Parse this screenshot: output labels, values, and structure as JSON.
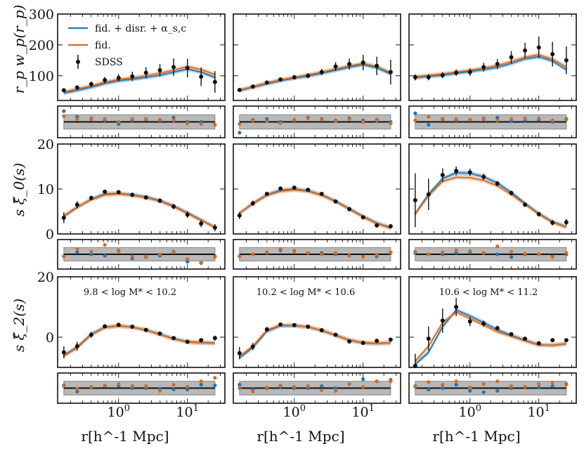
{
  "chart_data": {
    "type": "line",
    "title": "",
    "x_scale": "log",
    "xlim": [
      0.13,
      35
    ],
    "xlabel": "r[h^-1 Mpc]",
    "x_ticks": [
      {
        "value": 1,
        "label": "10^0"
      },
      {
        "value": 10,
        "label": "10^1"
      }
    ],
    "columns": [
      "9.8 < log M* < 10.2",
      "10.2 < log M* < 10.6",
      "10.6 < log M* < 11.2"
    ],
    "legend": {
      "placement": "top-left",
      "entries": [
        {
          "key": "blue",
          "label": "fid. + disr. + α_s,c"
        },
        {
          "key": "orange",
          "label": "fid."
        },
        {
          "key": "data",
          "label": "SDSS"
        }
      ]
    },
    "series_colors": {
      "blue": "#1f77b4",
      "orange": "#d96a1e",
      "data": "#111111",
      "band_blue": "#9cc6e6",
      "band_orange": "#f2c09a",
      "resid_band": "#b8b8b8"
    },
    "rows": [
      {
        "name": "wp",
        "ylabel": "r_p w_p(r_p)",
        "ylim": [
          20,
          300
        ],
        "y_ticks": [
          100,
          200,
          300
        ],
        "x": [
          0.16,
          0.25,
          0.4,
          0.63,
          1.0,
          1.58,
          2.5,
          3.98,
          6.3,
          10.0,
          15.8,
          25.1
        ]
      },
      {
        "name": "xi0",
        "ylabel": "s ξ̂_0(s)",
        "ylim": [
          0,
          20
        ],
        "y_ticks": [
          0,
          10,
          20
        ],
        "x": [
          0.16,
          0.25,
          0.4,
          0.63,
          1.0,
          1.58,
          2.5,
          3.98,
          6.3,
          10.0,
          15.8,
          25.1
        ]
      },
      {
        "name": "xi2",
        "ylabel": "s ξ̂_2(s)",
        "ylim": [
          -10,
          20
        ],
        "y_ticks": [
          0,
          20
        ],
        "x": [
          0.16,
          0.25,
          0.4,
          0.63,
          1.0,
          1.58,
          2.5,
          3.98,
          6.3,
          10.0,
          15.8,
          25.1
        ]
      }
    ],
    "panels": [
      {
        "row": 0,
        "col": 0,
        "data": [
          53,
          62,
          73,
          86,
          93,
          98,
          110,
          118,
          128,
          125,
          97,
          80
        ],
        "err": [
          6,
          7,
          8,
          10,
          12,
          15,
          18,
          20,
          28,
          30,
          30,
          35
        ],
        "fid_blue": [
          44,
          53,
          63,
          75,
          84,
          89,
          95,
          102,
          112,
          122,
          112,
          95
        ],
        "fid_orange": [
          47,
          57,
          67,
          79,
          88,
          93,
          100,
          108,
          118,
          130,
          120,
          104
        ]
      },
      {
        "row": 0,
        "col": 1,
        "data": [
          54,
          65,
          78,
          88,
          95,
          100,
          112,
          130,
          138,
          143,
          132,
          112
        ],
        "err": [
          4,
          5,
          5,
          6,
          7,
          8,
          10,
          14,
          18,
          25,
          30,
          40
        ],
        "fid_blue": [
          52,
          63,
          74,
          84,
          92,
          99,
          108,
          118,
          128,
          136,
          126,
          106
        ],
        "fid_orange": [
          54,
          65,
          77,
          87,
          95,
          103,
          112,
          122,
          132,
          140,
          130,
          110
        ]
      },
      {
        "row": 0,
        "col": 2,
        "data": [
          95,
          95,
          102,
          110,
          112,
          128,
          138,
          160,
          182,
          192,
          170,
          150
        ],
        "err": [
          10,
          10,
          10,
          10,
          12,
          14,
          16,
          20,
          25,
          35,
          40,
          45
        ],
        "fid_blue": [
          94,
          98,
          102,
          108,
          114,
          120,
          128,
          140,
          155,
          162,
          148,
          120
        ],
        "fid_orange": [
          97,
          101,
          106,
          112,
          118,
          125,
          133,
          146,
          160,
          168,
          154,
          128
        ]
      },
      {
        "row": 1,
        "col": 0,
        "data": [
          3.6,
          6.5,
          8.0,
          9.4,
          9.3,
          8.7,
          8.1,
          7.4,
          6.1,
          4.3,
          2.3,
          1.4
        ],
        "err": [
          1.2,
          0.8,
          0.5,
          0.4,
          0.4,
          0.4,
          0.4,
          0.5,
          0.6,
          0.7,
          0.8,
          0.8
        ],
        "fid_blue": [
          3.9,
          5.9,
          7.7,
          8.9,
          9.0,
          8.7,
          8.2,
          7.4,
          6.2,
          4.7,
          3.1,
          1.5
        ],
        "fid_orange": [
          4.0,
          6.0,
          7.6,
          8.7,
          8.9,
          8.6,
          8.1,
          7.3,
          6.1,
          4.6,
          3.0,
          1.5
        ]
      },
      {
        "row": 1,
        "col": 1,
        "data": [
          4.1,
          6.8,
          8.9,
          10.1,
          10.3,
          9.8,
          8.9,
          7.2,
          5.5,
          3.7,
          1.9,
          1.7
        ],
        "err": [
          0.8,
          0.6,
          0.4,
          0.3,
          0.3,
          0.3,
          0.3,
          0.3,
          0.3,
          0.3,
          0.4,
          0.5
        ],
        "fid_blue": [
          4.6,
          6.8,
          8.7,
          9.7,
          10.0,
          9.6,
          8.7,
          7.3,
          5.6,
          3.9,
          2.4,
          1.4
        ],
        "fid_orange": [
          4.6,
          6.7,
          8.6,
          9.5,
          9.8,
          9.5,
          8.6,
          7.2,
          5.5,
          3.8,
          2.3,
          1.3
        ]
      },
      {
        "row": 1,
        "col": 2,
        "data": [
          7.5,
          8.8,
          13.1,
          14.0,
          13.7,
          12.7,
          11.2,
          9.1,
          6.5,
          4.4,
          2.5,
          2.6
        ],
        "err": [
          6.0,
          3.5,
          1.5,
          1.0,
          0.8,
          0.7,
          0.6,
          0.5,
          0.5,
          0.5,
          0.6,
          0.7
        ],
        "fid_blue": [
          4.5,
          8.8,
          12.3,
          13.6,
          13.5,
          12.7,
          11.3,
          9.2,
          6.8,
          4.5,
          2.7,
          1.6
        ],
        "fid_orange": [
          4.4,
          8.5,
          11.7,
          12.6,
          12.5,
          11.9,
          10.7,
          8.8,
          6.6,
          4.4,
          2.6,
          1.5
        ]
      },
      {
        "row": 2,
        "col": 0,
        "data": [
          -5.0,
          -3.0,
          0.8,
          3.6,
          4.1,
          3.5,
          2.4,
          1.2,
          -0.3,
          -1.5,
          -1.0,
          -0.3
        ],
        "err": [
          2.0,
          1.5,
          1.0,
          0.7,
          0.5,
          0.4,
          0.4,
          0.4,
          0.4,
          0.4,
          0.6,
          0.8
        ],
        "fid_blue": [
          -6.0,
          -3.3,
          1.0,
          3.3,
          3.8,
          3.3,
          2.4,
          1.0,
          -0.5,
          -1.5,
          -1.8,
          -1.9
        ],
        "fid_orange": [
          -6.2,
          -3.5,
          0.8,
          3.2,
          3.7,
          3.3,
          2.3,
          0.9,
          -0.6,
          -1.6,
          -1.9,
          -2.0
        ]
      },
      {
        "row": 2,
        "col": 1,
        "data": [
          -5.3,
          -3.1,
          2.6,
          4.2,
          4.0,
          3.5,
          2.3,
          0.8,
          -1.4,
          -1.9,
          -1.2,
          -0.8
        ],
        "err": [
          2.0,
          1.2,
          0.8,
          0.5,
          0.4,
          0.3,
          0.3,
          0.3,
          0.3,
          0.3,
          0.3,
          0.4
        ],
        "fid_blue": [
          -6.8,
          -3.4,
          2.0,
          3.8,
          3.8,
          3.4,
          2.2,
          0.6,
          -1.0,
          -1.9,
          -2.1,
          -1.9
        ],
        "fid_orange": [
          -6.4,
          -3.0,
          2.3,
          4.0,
          3.9,
          3.4,
          2.3,
          0.7,
          -0.9,
          -1.8,
          -2.0,
          -1.8
        ]
      },
      {
        "row": 2,
        "col": 2,
        "data": [
          -9.5,
          -0.5,
          5.5,
          10.0,
          5.2,
          4.5,
          3.0,
          1.0,
          -0.5,
          -2.0,
          -1.0,
          -1.0
        ],
        "err": [
          4.0,
          4.0,
          4.0,
          3.0,
          1.5,
          1.0,
          0.8,
          0.6,
          0.5,
          0.5,
          0.5,
          0.6
        ],
        "fid_blue": [
          -9.0,
          -5.0,
          3.5,
          9.0,
          7.0,
          4.8,
          2.4,
          0.6,
          -1.0,
          -2.5,
          -2.7,
          -2.2
        ],
        "fid_orange": [
          -8.0,
          -3.0,
          4.8,
          8.3,
          6.2,
          4.0,
          1.8,
          0.3,
          -1.2,
          -2.6,
          -2.6,
          -2.1
        ]
      }
    ],
    "residuals": {
      "x": [
        0.16,
        0.25,
        0.4,
        0.63,
        1.0,
        1.58,
        2.5,
        3.98,
        6.3,
        10.0,
        15.8,
        25.1
      ],
      "ylim": [
        -2.2,
        2.2
      ],
      "band": [
        -1,
        1
      ],
      "panels": [
        {
          "row": 0,
          "col": 0,
          "blue": [
            1.5,
            0.7,
            0.4,
            0.2,
            -0.3,
            0.2,
            0.3,
            0.2,
            0.6,
            0.0,
            0.0,
            -0.4
          ],
          "orange": [
            0.8,
            0.4,
            0.5,
            0.4,
            0.0,
            0.4,
            0.4,
            0.3,
            0.2,
            -0.2,
            -0.3,
            -0.4
          ]
        },
        {
          "row": 0,
          "col": 1,
          "blue": [
            -1.5,
            0.3,
            0.4,
            0.0,
            0.2,
            0.6,
            0.4,
            0.2,
            0.5,
            0.2,
            0.3,
            0.0
          ],
          "orange": [
            -0.3,
            0.2,
            0.1,
            -0.2,
            0.3,
            0.5,
            0.3,
            0.1,
            0.4,
            0.0,
            0.2,
            -0.2
          ]
        },
        {
          "row": 0,
          "col": 2,
          "blue": [
            1.2,
            -0.4,
            0.4,
            0.2,
            0.3,
            0.4,
            0.6,
            0.1,
            0.2,
            0.3,
            0.0,
            0.4
          ],
          "orange": [
            0.2,
            0.7,
            0.3,
            0.4,
            0.3,
            0.5,
            0.2,
            0.4,
            0.5,
            0.5,
            0.2,
            0.3
          ]
        },
        {
          "row": 1,
          "col": 0,
          "blue": [
            -0.3,
            0.3,
            0.0,
            -0.2,
            0.5,
            -0.6,
            -0.4,
            -0.2,
            0.4,
            -1.1,
            -1.3,
            -0.3
          ],
          "orange": [
            -0.3,
            0.8,
            0.4,
            1.4,
            0.6,
            -0.3,
            -0.3,
            0.0,
            0.3,
            -0.7,
            -1.2,
            -0.4
          ]
        },
        {
          "row": 1,
          "col": 1,
          "blue": [
            -0.3,
            0.0,
            0.2,
            0.6,
            0.5,
            0.2,
            0.2,
            0.0,
            -0.2,
            -0.3,
            -0.3,
            0.2
          ],
          "orange": [
            -0.3,
            0.0,
            0.3,
            0.8,
            0.4,
            0.2,
            0.0,
            0.2,
            -0.2,
            -0.4,
            -0.1,
            0.3
          ]
        },
        {
          "row": 1,
          "col": 2,
          "blue": [
            0.2,
            0.0,
            0.0,
            0.2,
            0.3,
            0.2,
            0.0,
            -0.4,
            0.0,
            0.0,
            -0.3,
            0.0
          ],
          "orange": [
            0.4,
            0.0,
            0.3,
            0.6,
            0.5,
            0.2,
            1.2,
            0.4,
            0.1,
            0.0,
            -0.4,
            0.2
          ]
        },
        {
          "row": 2,
          "col": 0,
          "blue": [
            0.4,
            -0.5,
            0.1,
            0.3,
            0.3,
            0.0,
            0.0,
            -0.1,
            -0.2,
            -0.2,
            0.5,
            0.4
          ],
          "orange": [
            0.3,
            -0.1,
            0.2,
            0.4,
            0.6,
            0.3,
            0.3,
            -0.4,
            0.5,
            0.2,
            1.0,
            1.5
          ]
        },
        {
          "row": 2,
          "col": 1,
          "blue": [
            0.5,
            -0.2,
            0.0,
            0.2,
            0.0,
            0.0,
            0.3,
            0.0,
            0.6,
            1.3,
            1.0,
            1.2
          ],
          "orange": [
            0.0,
            -0.5,
            0.1,
            0.4,
            0.2,
            0.3,
            -0.3,
            -0.4,
            0.6,
            0.2,
            1.0,
            1.0
          ]
        },
        {
          "row": 2,
          "col": 2,
          "blue": [
            0.3,
            -0.2,
            0.0,
            0.5,
            -0.4,
            -0.6,
            -0.4,
            0.0,
            0.2,
            0.1,
            0.3,
            0.6
          ],
          "orange": [
            0.2,
            0.9,
            0.5,
            1.0,
            0.1,
            0.6,
            1.0,
            0.3,
            0.2,
            0.6,
            0.8,
            0.5
          ]
        }
      ]
    }
  }
}
